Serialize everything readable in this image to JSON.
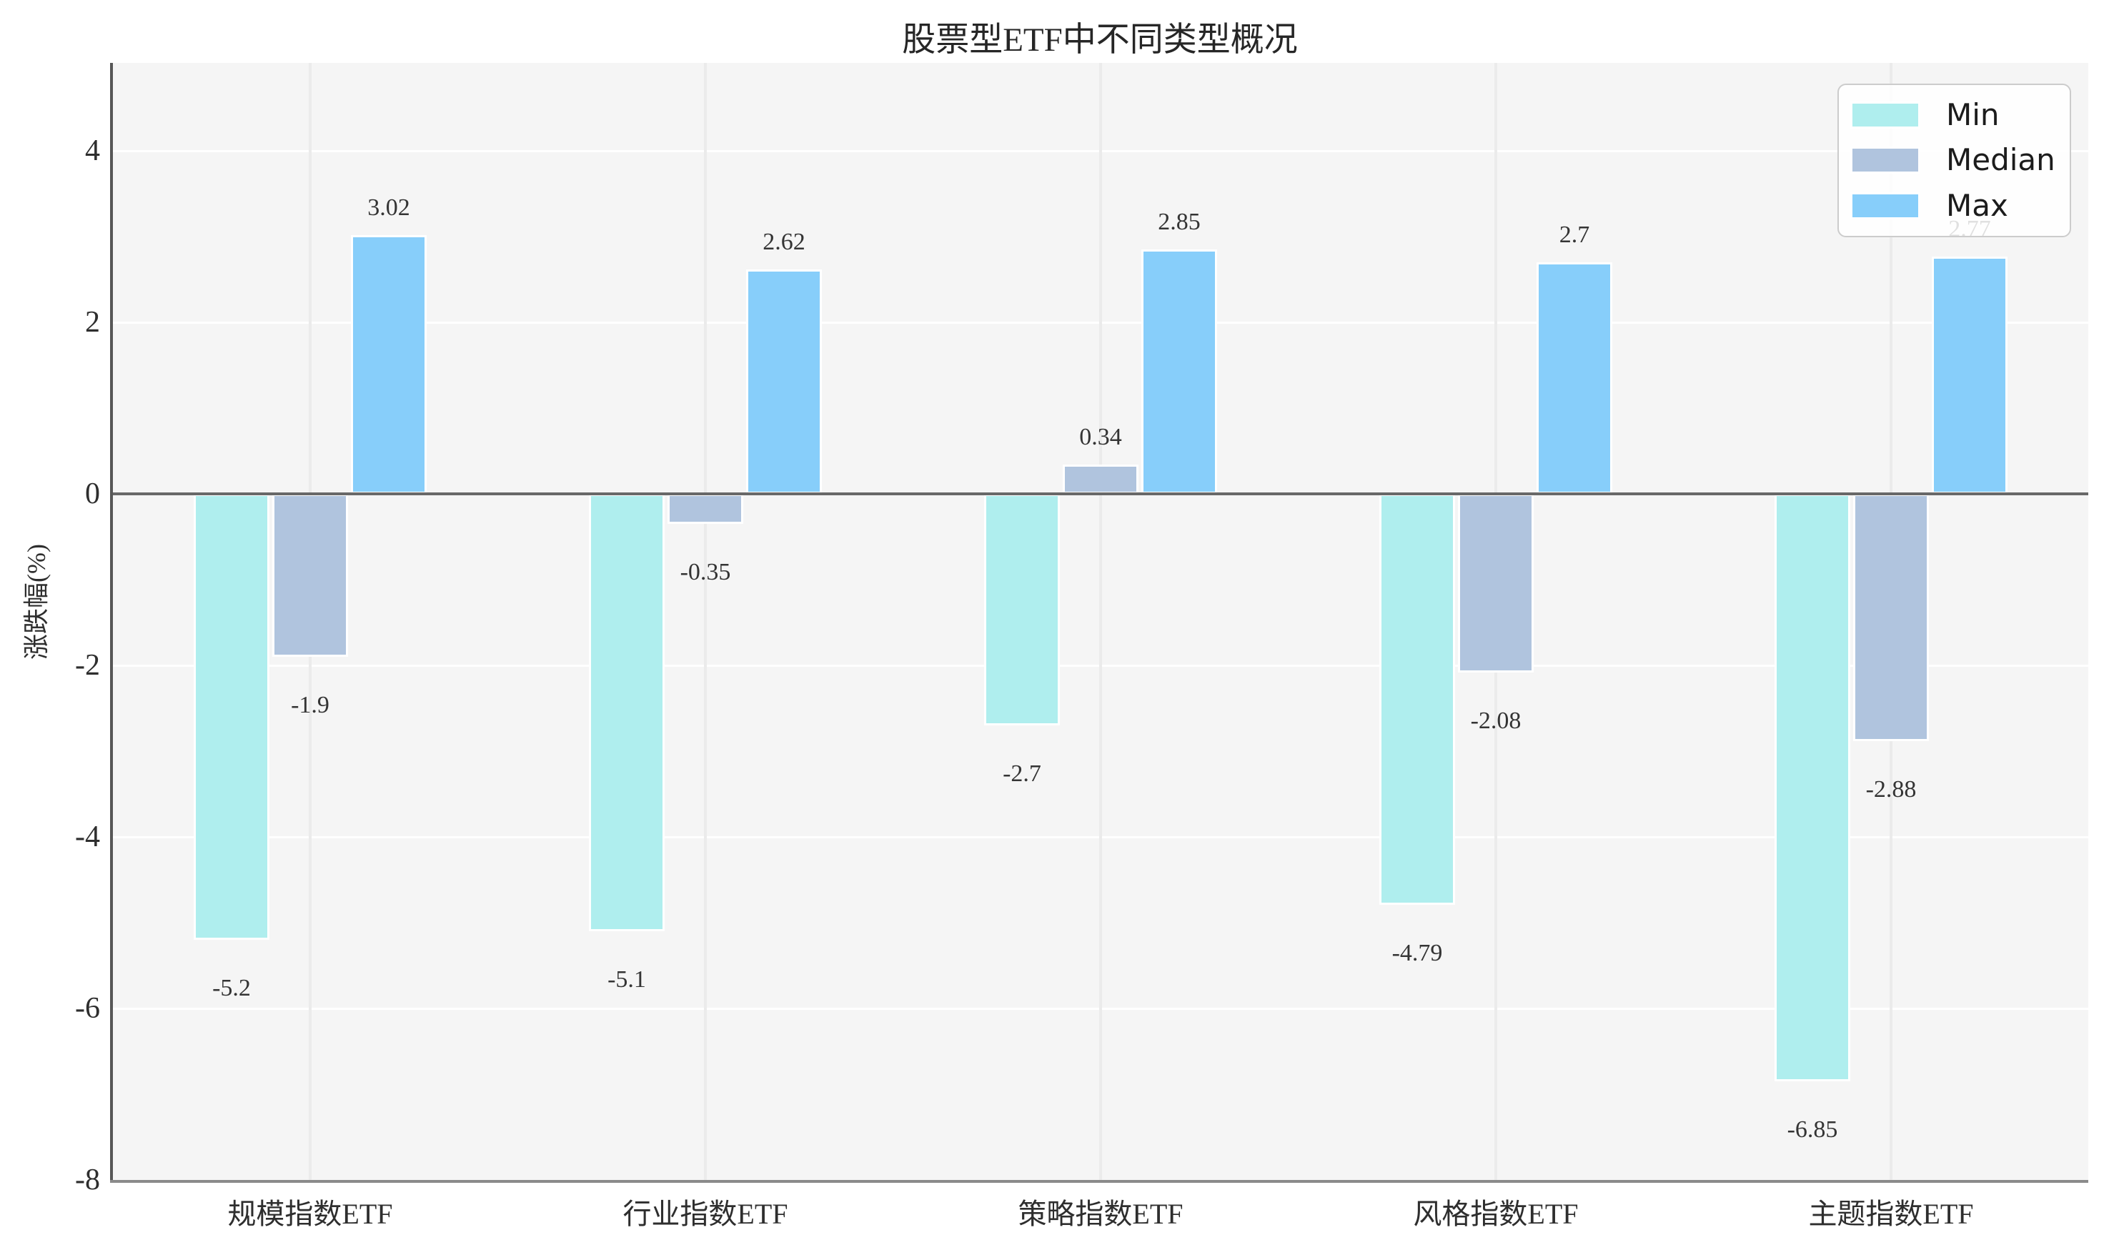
{
  "chart_data": {
    "type": "bar",
    "title": "股票型ETF中不同类型概况",
    "xlabel": "",
    "ylabel": "涨跌幅(%)",
    "categories": [
      "规模指数ETF",
      "行业指数ETF",
      "策略指数ETF",
      "风格指数ETF",
      "主题指数ETF"
    ],
    "series": [
      {
        "name": "Min",
        "color": "#AFEEEE",
        "values": [
          -5.2,
          -5.1,
          -2.7,
          -4.79,
          -6.85
        ],
        "labels": [
          "-5.2",
          "-5.1",
          "-2.7",
          "-4.79",
          "-6.85"
        ]
      },
      {
        "name": "Median",
        "color": "#B0C4DE",
        "values": [
          -1.9,
          -0.35,
          0.34,
          -2.08,
          -2.88
        ],
        "labels": [
          "-1.9",
          "-0.35",
          "0.34",
          "-2.08",
          "-2.88"
        ]
      },
      {
        "name": "Max",
        "color": "#87CEFA",
        "values": [
          3.02,
          2.62,
          2.85,
          2.7,
          2.77
        ],
        "labels": [
          "3.02",
          "2.62",
          "2.85",
          "2.7",
          "2.77"
        ]
      }
    ],
    "y_ticks": {
      "values": [
        4,
        2,
        0,
        -2,
        -4,
        -6,
        -8
      ],
      "labels": [
        "4",
        "2",
        "0",
        "-2",
        "-4",
        "-6",
        "-8"
      ]
    },
    "ylim": [
      -8,
      5.0
    ],
    "grid": "on",
    "plot_background": "#f5f5f5",
    "zero_line_color": "#686868",
    "legend": {
      "position": "upper right",
      "entries": [
        "Min",
        "Median",
        "Max"
      ]
    },
    "bar_value_labels_shown": true
  }
}
